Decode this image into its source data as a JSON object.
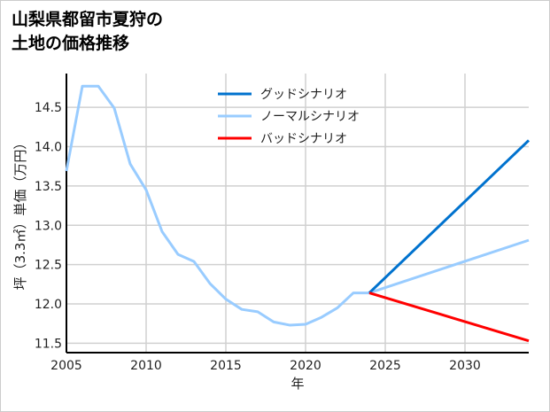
{
  "chart_data": {
    "type": "line",
    "title_lines": [
      "山梨県都留市夏狩の",
      "土地の価格推移"
    ],
    "xlabel": "年",
    "ylabel": "坪（3.3㎡）単価（万円）",
    "xlim": [
      2005,
      2034
    ],
    "ylim": [
      11.38,
      14.93
    ],
    "xticks": [
      2005,
      2010,
      2015,
      2020,
      2025,
      2030
    ],
    "yticks": [
      11.5,
      12.0,
      12.5,
      13.0,
      13.5,
      14.0,
      14.5
    ],
    "ytick_labels": [
      "11.5",
      "12.0",
      "12.5",
      "13.0",
      "13.5",
      "14.0",
      "14.5"
    ],
    "grid": true,
    "legend_position": "top-center",
    "series": [
      {
        "name": "グッドシナリオ",
        "color": "#0072CE",
        "x": [
          2024,
          2034
        ],
        "y": [
          12.14,
          14.08
        ]
      },
      {
        "name": "ノーマルシナリオ",
        "color": "#99CCFF",
        "x": [
          2005,
          2006,
          2007,
          2008,
          2009,
          2010,
          2011,
          2012,
          2013,
          2014,
          2015,
          2016,
          2017,
          2018,
          2019,
          2020,
          2021,
          2022,
          2023,
          2024,
          2034
        ],
        "y": [
          13.69,
          14.77,
          14.77,
          14.49,
          13.78,
          13.45,
          12.92,
          12.63,
          12.54,
          12.26,
          12.06,
          11.93,
          11.9,
          11.77,
          11.73,
          11.74,
          11.83,
          11.95,
          12.14,
          12.14,
          12.81
        ]
      },
      {
        "name": "バッドシナリオ",
        "color": "#FF0000",
        "x": [
          2024,
          2034
        ],
        "y": [
          12.14,
          11.53
        ]
      }
    ]
  }
}
